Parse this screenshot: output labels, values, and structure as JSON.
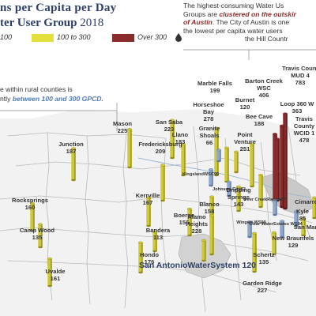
{
  "title_line1": "ns per Capita per Day",
  "title_line2_main": "ter User Group",
  "title_line2_year": "2018",
  "legend": [
    {
      "label": "100",
      "color": "#e4de3c"
    },
    {
      "label": "100 to 300",
      "color": "#c8c12c"
    },
    {
      "label": "Over 300",
      "color": "#8b2a2a"
    }
  ],
  "legend_icon": "water-drop-icon",
  "note_right": {
    "line1": "The highest-consuming Water Us",
    "line2_pre": "Groups are ",
    "line2_em": "clustered on the outskir",
    "line3_em": "of Austin",
    "line3_post": ". The City of Austin is one",
    "line4": "the lowest per capita water users",
    "line5": "the Hill Countr"
  },
  "note_left": {
    "line1": "e within rural counties is",
    "line2_pre": "ntly ",
    "line2_em": "between 100 and 300 GPCD."
  },
  "colors": {
    "yellow": "#cfc93a",
    "yellow_dark": "#8f8b1c",
    "maroon": "#8b2a2a",
    "maroon_dark": "#5a1717",
    "blue": "#8fa8cc",
    "blue_dark": "#5f7aa2",
    "title": "#2d3f66"
  },
  "places": [
    {
      "name": "San Saba",
      "value": "223",
      "gpcd": 223,
      "tier": "mid"
    },
    {
      "name": "Mason",
      "value": "225",
      "gpcd": 225,
      "tier": "mid"
    },
    {
      "name": "Llano",
      "value": "183",
      "gpcd": 183,
      "tier": "mid"
    },
    {
      "name": "Fredericksburg",
      "value": "209",
      "gpcd": 209,
      "tier": "mid"
    },
    {
      "name": "Junction",
      "value": "187",
      "gpcd": 187,
      "tier": "mid"
    },
    {
      "name": "Kerrville",
      "value": "167",
      "gpcd": 167,
      "tier": "mid"
    },
    {
      "name": "Rocksprings",
      "value": "160",
      "gpcd": 160,
      "tier": "mid"
    },
    {
      "name": "Camp Wood",
      "value": "135",
      "gpcd": 135,
      "tier": "mid"
    },
    {
      "name": "Bandera",
      "value": "113",
      "gpcd": 113,
      "tier": "mid"
    },
    {
      "name": "Boerne",
      "value": "156",
      "gpcd": 156,
      "tier": "mid"
    },
    {
      "name": "Hondo",
      "value": "176",
      "gpcd": 176,
      "tier": "mid"
    },
    {
      "name": "Uvalde",
      "value": "161",
      "gpcd": 161,
      "tier": "mid"
    },
    {
      "name": "Blanco",
      "value": "158",
      "gpcd": 158,
      "tier": "mid"
    },
    {
      "name": "Alamo Heights",
      "value": "228",
      "gpcd": 228,
      "tier": "mid"
    },
    {
      "name": "Marble Falls",
      "value": "199",
      "gpcd": 199,
      "tier": "mid"
    },
    {
      "name": "Horseshoe Bay",
      "value": "278",
      "gpcd": 278,
      "tier": "mid"
    },
    {
      "name": "Granite Shoals",
      "value": "66",
      "gpcd": 66,
      "tier": "low"
    },
    {
      "name": "Burnet",
      "value": "120",
      "gpcd": 120,
      "tier": "mid"
    },
    {
      "name": "Barton Creek WSC",
      "value": "406",
      "gpcd": 406,
      "tier": "high"
    },
    {
      "name": "Bee Cave",
      "value": "188",
      "gpcd": 188,
      "tier": "mid"
    },
    {
      "name": "Point Venture",
      "value": "251",
      "gpcd": 251,
      "tier": "mid"
    },
    {
      "name": "Travis County MUD 4",
      "value": "783",
      "gpcd": 783,
      "tier": "high"
    },
    {
      "name": "Loop 360 W",
      "value": "363",
      "gpcd": 363,
      "tier": "high"
    },
    {
      "name": "Travis County WCID 1",
      "value": "478",
      "gpcd": 478,
      "tier": "high"
    },
    {
      "name": "Dripping Springs",
      "value": "143",
      "gpcd": 143,
      "tier": "mid"
    },
    {
      "name": "Kingsland WSC",
      "value": "95",
      "gpcd": 95,
      "tier": "low"
    },
    {
      "name": "Johnson City",
      "value": "82",
      "gpcd": 82,
      "tier": "low"
    },
    {
      "name": "Deer Creek Ranch",
      "value": "87",
      "gpcd": 87,
      "tier": "low"
    },
    {
      "name": "Wingert WS",
      "value": "90",
      "gpcd": 90,
      "tier": "low"
    },
    {
      "name": "Clear Water Estates WS",
      "value": "94",
      "gpcd": 94,
      "tier": "low"
    },
    {
      "name": "Kyle",
      "value": "85",
      "gpcd": 85,
      "tier": "low"
    },
    {
      "name": "San Marco",
      "value": "",
      "gpcd": 100,
      "tier": "mid"
    },
    {
      "name": "Cimarron",
      "value": "",
      "gpcd": 120,
      "tier": "mid"
    },
    {
      "name": "New Braunfels",
      "value": "129",
      "gpcd": 129,
      "tier": "mid"
    },
    {
      "name": "Schertz",
      "value": "135",
      "gpcd": 135,
      "tier": "mid"
    },
    {
      "name": "Garden Ridge",
      "value": "227",
      "gpcd": 227,
      "tier": "mid"
    },
    {
      "name": "San Antonio Water System",
      "value": "120",
      "gpcd": 120,
      "tier": "mid"
    }
  ]
}
